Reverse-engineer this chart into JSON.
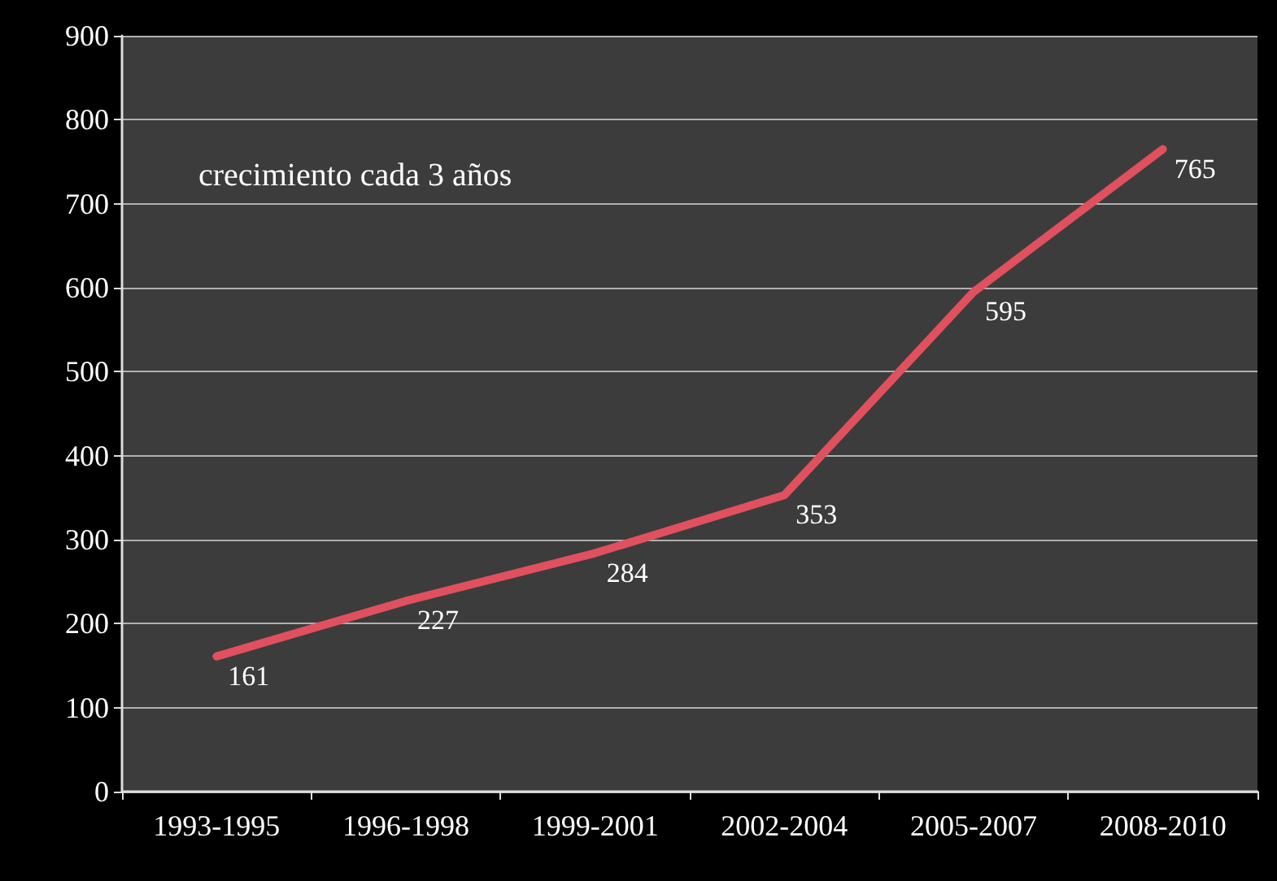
{
  "chart_data": {
    "type": "line",
    "categories": [
      "1993-1995",
      "1996-1998",
      "1999-2001",
      "2002-2004",
      "2005-2007",
      "2008-2010"
    ],
    "series": [
      {
        "color": "#e0505e",
        "values": [
          161,
          227,
          284,
          353,
          595,
          765
        ]
      }
    ],
    "ylim": [
      0,
      900
    ],
    "yticks": [
      0,
      100,
      200,
      300,
      400,
      500,
      600,
      700,
      800,
      900
    ],
    "grid": "y",
    "data_labels": true,
    "marker": "none",
    "line_style": "solid",
    "annotations": [
      "crecimiento cada 3 años"
    ]
  }
}
